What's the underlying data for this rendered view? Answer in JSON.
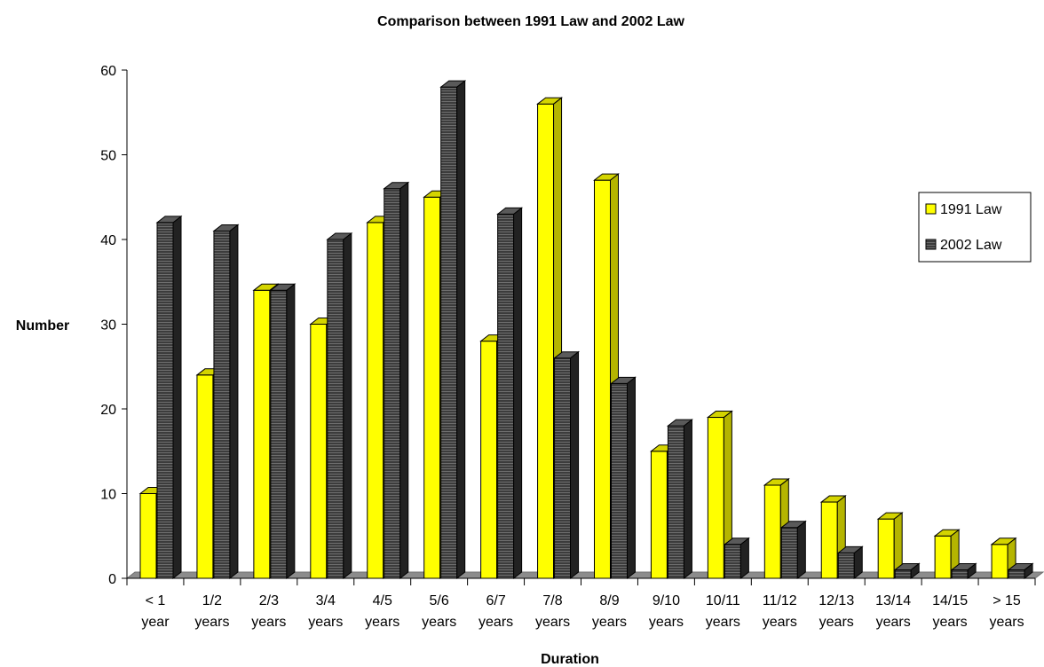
{
  "chart_data": {
    "type": "bar",
    "title": "Comparison between 1991 Law and 2002 Law",
    "xlabel": "Duration",
    "ylabel": "Number",
    "ylim": [
      0,
      60
    ],
    "yticks": [
      0,
      10,
      20,
      30,
      40,
      50,
      60
    ],
    "grid": false,
    "legend_position": "right",
    "categories": [
      [
        "< 1",
        "year"
      ],
      [
        "1/2",
        "years"
      ],
      [
        "2/3",
        "years"
      ],
      [
        "3/4",
        "years"
      ],
      [
        "4/5",
        "years"
      ],
      [
        "5/6",
        "years"
      ],
      [
        "6/7",
        "years"
      ],
      [
        "7/8",
        "years"
      ],
      [
        "8/9",
        "years"
      ],
      [
        "9/10",
        "years"
      ],
      [
        "10/11",
        "years"
      ],
      [
        "11/12",
        "years"
      ],
      [
        "12/13",
        "years"
      ],
      [
        "13/14",
        "years"
      ],
      [
        "14/15",
        "years"
      ],
      [
        "> 15",
        "years"
      ]
    ],
    "series": [
      {
        "name": "1991 Law",
        "color": "#ffff00",
        "values": [
          10,
          24,
          34,
          30,
          42,
          45,
          28,
          56,
          47,
          15,
          19,
          11,
          9,
          7,
          5,
          4
        ]
      },
      {
        "name": "2002 Law",
        "color": "#333333",
        "values": [
          42,
          41,
          34,
          40,
          46,
          58,
          43,
          26,
          23,
          18,
          4,
          6,
          3,
          1,
          1,
          1
        ]
      }
    ]
  }
}
